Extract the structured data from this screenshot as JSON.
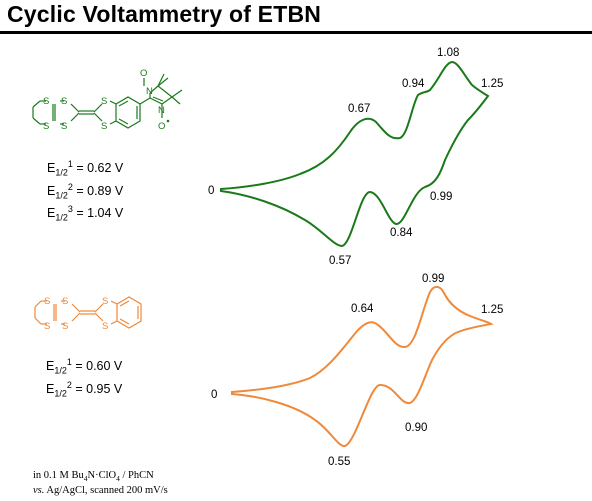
{
  "title": "Cyclic Voltammetry of ETBN",
  "colors": {
    "top": "#1a7a1a",
    "bottom": "#f0893a",
    "rule": "#000000"
  },
  "equations": {
    "top": [
      {
        "prefix": "E",
        "sub": "1/2",
        "sup": "1",
        "value": " = 0.62 V"
      },
      {
        "prefix": "E",
        "sub": "1/2",
        "sup": "2",
        "value": " = 0.89 V"
      },
      {
        "prefix": "E",
        "sub": "1/2",
        "sup": "3",
        "value": " = 1.04 V"
      }
    ],
    "bottom": [
      {
        "prefix": "E",
        "sub": "1/2",
        "sup": "1",
        "value": " = 0.60 V"
      },
      {
        "prefix": "E",
        "sub": "1/2",
        "sup": "2",
        "value": " = 0.95 V"
      }
    ]
  },
  "molecule_labels": {
    "S": "S",
    "N": "N",
    "O": "O"
  },
  "footnote": {
    "line1_prefix": "in 0.1 M Bu",
    "line1_sub1": "4",
    "line1_mid": "N·ClO",
    "line1_sub2": "4",
    "line1_suffix": " / PhCN",
    "line2_italic": "vs.",
    "line2_rest": " Ag/AgCl,  scanned 200 mV/s"
  },
  "chart_data": [
    {
      "type": "line",
      "series": [
        {
          "color": "#1a7a1a"
        }
      ],
      "start_label": "0",
      "end_label": "1.25",
      "anodic_peak_labels": [
        "0.67",
        "0.94",
        "1.08"
      ],
      "cathodic_peak_labels": [
        "0.99",
        "0.84",
        "0.57"
      ],
      "anodic_peaks": [
        0.67,
        0.94,
        1.08
      ],
      "cathodic_peaks": [
        0.99,
        0.84,
        0.57
      ],
      "xlim": [
        0,
        1.25
      ]
    },
    {
      "type": "line",
      "series": [
        {
          "color": "#f0893a"
        }
      ],
      "start_label": "0",
      "end_label": "1.25",
      "anodic_peak_labels": [
        "0.64",
        "0.99"
      ],
      "cathodic_peak_labels": [
        "0.90",
        "0.55"
      ],
      "anodic_peaks": [
        0.64,
        0.99
      ],
      "cathodic_peaks": [
        0.9,
        0.55
      ],
      "xlim": [
        0,
        1.25
      ]
    }
  ]
}
